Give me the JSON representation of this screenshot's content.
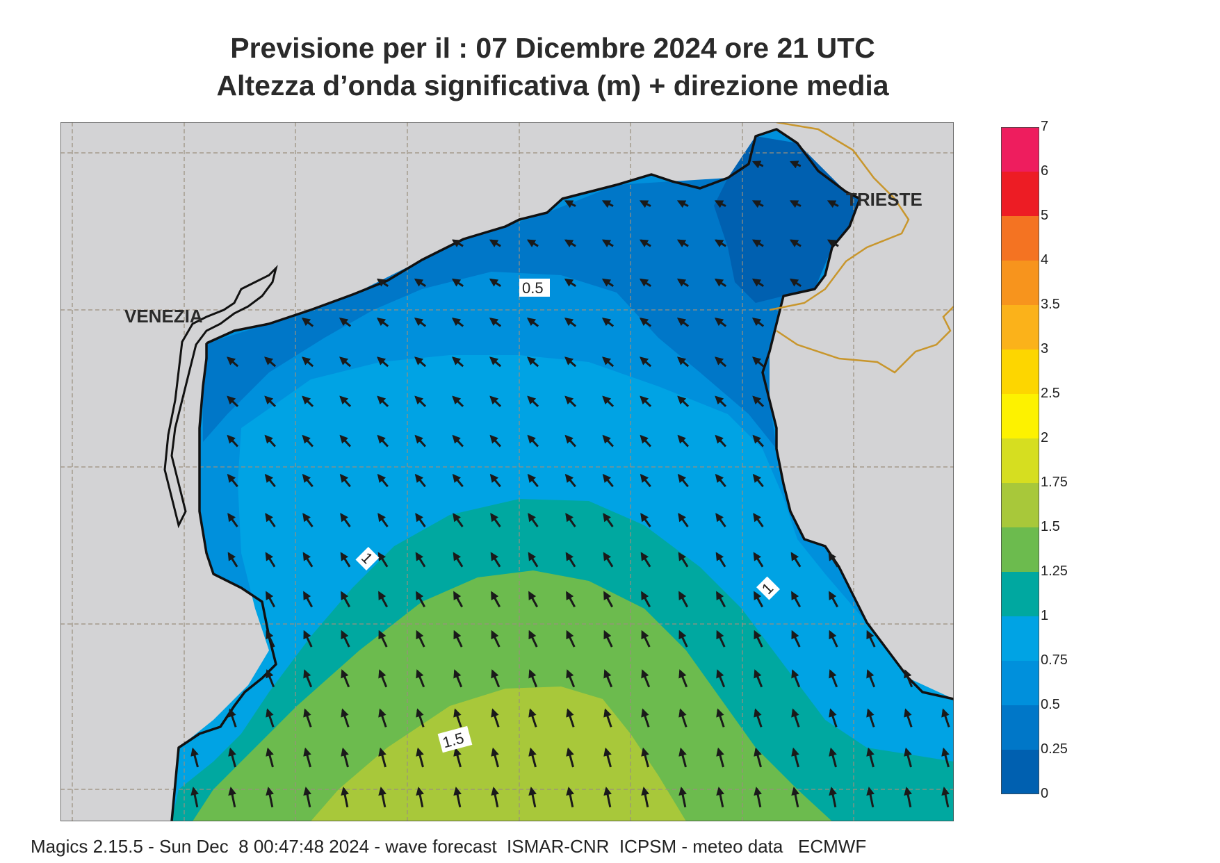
{
  "title": {
    "line1": "Previsione per il  :  07 Dicembre  2024   ore 21 UTC",
    "line2": "Altezza d’onda significativa (m) + direzione media"
  },
  "map": {
    "places": [
      "VENEZIA",
      "TRIESTE"
    ],
    "contour_labels": [
      "0.5",
      "1",
      "1",
      "1.5"
    ],
    "band_colors": [
      "#0060b0",
      "#0077c8",
      "#0090dc",
      "#00a3e4",
      "#00a8a0",
      "#6cbb4e",
      "#a8c83a",
      "#d6de20",
      "#fdf200",
      "#fdd600",
      "#fbb21a",
      "#f7941d",
      "#f47322",
      "#ed1c24",
      "#ee1d5e"
    ]
  },
  "legend": {
    "labels": [
      "7",
      "6",
      "5",
      "4",
      "3.5",
      "3",
      "2.5",
      "2",
      "1.75",
      "1.5",
      "1.25",
      "1",
      "0.75",
      "0.5",
      "0.25",
      "0"
    ],
    "colors": [
      "#ee1d5e",
      "#ed1c24",
      "#f47322",
      "#f7941d",
      "#fbb21a",
      "#fdd600",
      "#fdf200",
      "#d6de20",
      "#a8c83a",
      "#6cbb4e",
      "#00a8a0",
      "#00a3e4",
      "#0090dc",
      "#0077c8",
      "#0060b0"
    ]
  },
  "footer": "Magics 2.15.5 - Sun Dec  8 00:47:48 2024 - wave forecast  ISMAR-CNR  ICPSM - meteo data   ECMWF"
}
